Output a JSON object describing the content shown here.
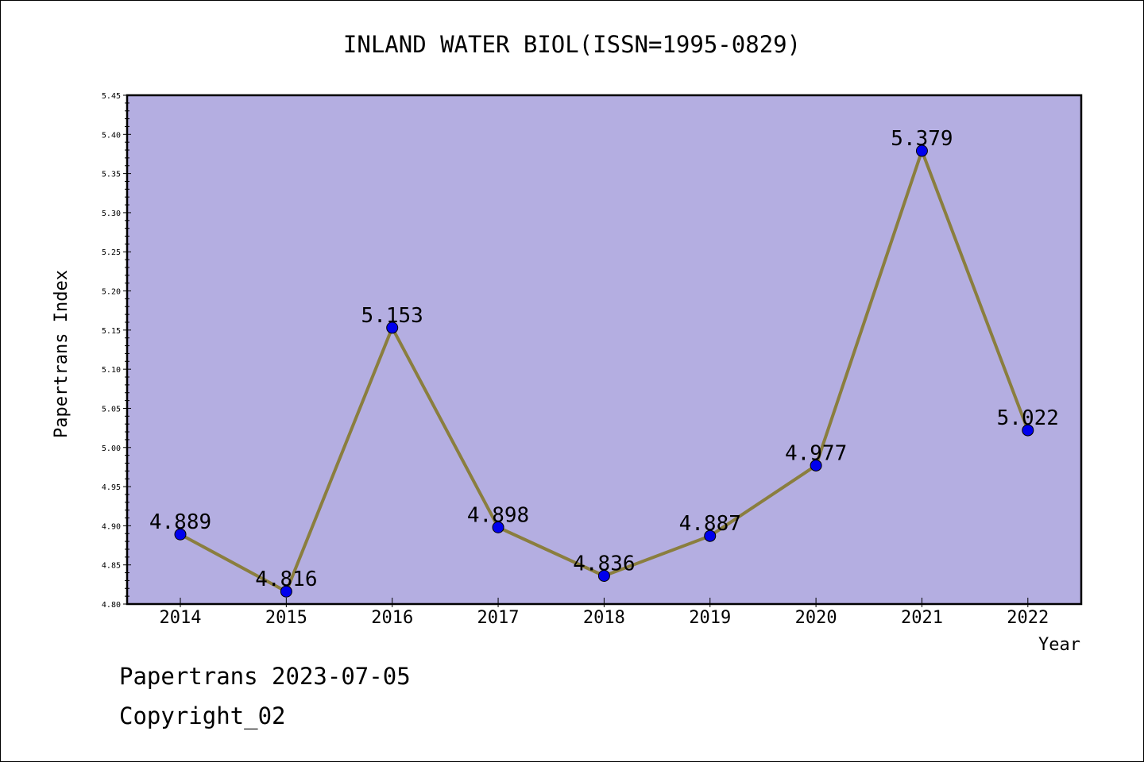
{
  "chart_data": {
    "type": "line",
    "title": "INLAND WATER BIOL(ISSN=1995-0829)",
    "xlabel": "Year",
    "ylabel": "Papertrans Index",
    "categories": [
      "2014",
      "2015",
      "2016",
      "2017",
      "2018",
      "2019",
      "2020",
      "2021",
      "2022"
    ],
    "values": [
      4.889,
      4.816,
      5.153,
      4.898,
      4.836,
      4.887,
      4.977,
      5.379,
      5.022
    ],
    "data_labels": [
      "4.889",
      "4.816",
      "5.153",
      "4.898",
      "4.836",
      "4.887",
      "4.977",
      "5.379",
      "5.022"
    ],
    "ylim": [
      4.8,
      5.45
    ],
    "yticks": [
      "4.80",
      "4.85",
      "4.90",
      "4.95",
      "5.00",
      "5.05",
      "5.10",
      "5.15",
      "5.20",
      "5.25",
      "5.30",
      "5.35",
      "5.40",
      "5.45"
    ],
    "grid": false,
    "colors": {
      "plot_background": "#b4aee1",
      "line": "#8a7e3e",
      "marker": "#0000ee"
    }
  },
  "footer": {
    "line1": "Papertrans 2023-07-05",
    "line2": "Copyright_02"
  }
}
